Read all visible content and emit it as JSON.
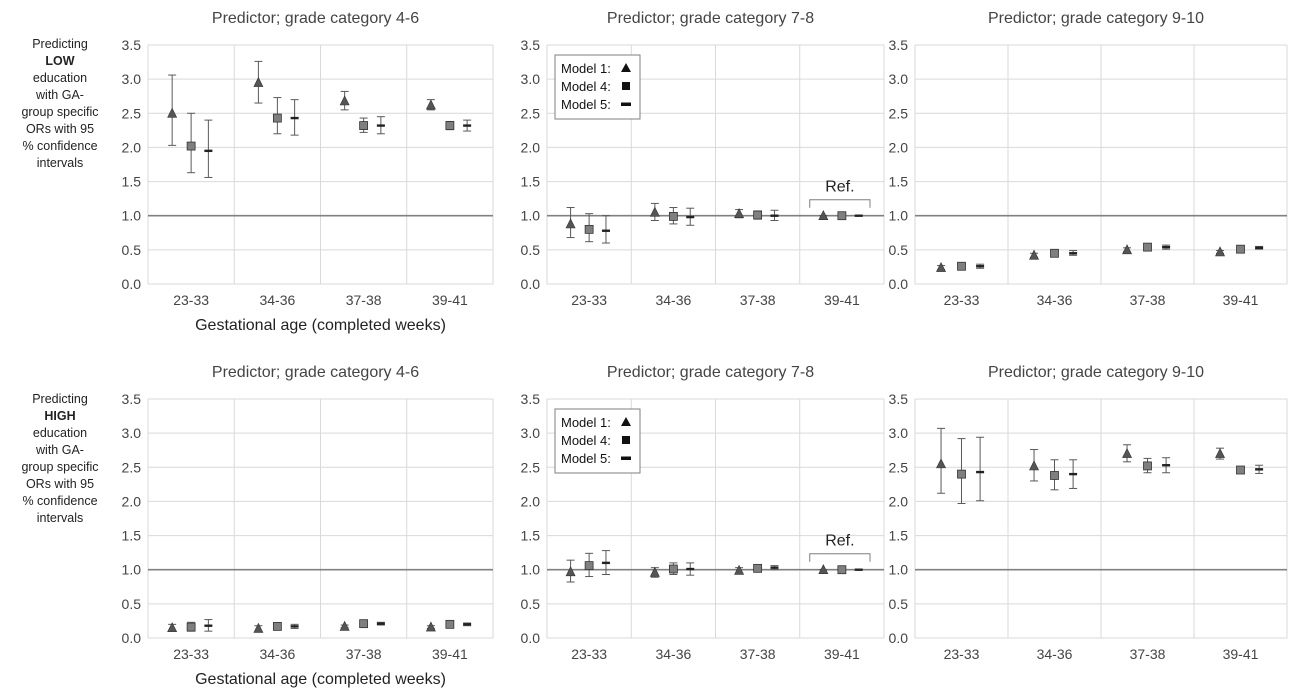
{
  "rows": [
    {
      "caption": [
        "Predicting",
        "LOW",
        "education",
        "with GA-",
        "group specific",
        "ORs with 95",
        "% confidence",
        "intervals"
      ],
      "xlabel": "Gestational age (completed weeks)"
    },
    {
      "caption": [
        "Predicting",
        "HIGH",
        "education",
        "with GA-",
        "group specific",
        "ORs with 95",
        "% confidence",
        "intervals"
      ],
      "xlabel": "Gestational age (completed weeks)"
    }
  ],
  "legend": {
    "entries": [
      {
        "label": "Model 1:",
        "marker": "triangle"
      },
      {
        "label": "Model 4:",
        "marker": "square"
      },
      {
        "label": "Model 5:",
        "marker": "dash"
      }
    ]
  },
  "ref_label": "Ref.",
  "colors": {
    "grid": "#d9d9d9",
    "refline": "#808080",
    "marker": "#555555",
    "marker_fill": "#7f7f7f",
    "errorbar": "#595959",
    "text": "#444444"
  },
  "chart_data": [
    {
      "type": "scatter",
      "title": "Predictor; grade category 4-6",
      "categories": [
        "23-33",
        "34-36",
        "37-38",
        "39-41"
      ],
      "ylim": [
        0,
        3.5
      ],
      "yticks": [
        "0.0",
        "0.5",
        "1.0",
        "1.5",
        "2.0",
        "2.5",
        "3.0",
        "3.5"
      ],
      "reference_line": 1.0,
      "xlabel": "Gestational age (completed weeks)",
      "series": [
        {
          "name": "Model 1",
          "values": [
            2.5,
            2.95,
            2.68,
            2.62
          ],
          "lower": [
            2.03,
            2.65,
            2.55,
            2.55
          ],
          "upper": [
            3.06,
            3.26,
            2.82,
            2.7
          ]
        },
        {
          "name": "Model 4",
          "values": [
            2.02,
            2.43,
            2.32,
            2.32
          ],
          "lower": [
            1.63,
            2.2,
            2.22,
            2.26
          ],
          "upper": [
            2.5,
            2.73,
            2.43,
            2.38
          ]
        },
        {
          "name": "Model 5",
          "values": [
            1.95,
            2.43,
            2.32,
            2.32
          ],
          "lower": [
            1.56,
            2.18,
            2.2,
            2.24
          ],
          "upper": [
            2.4,
            2.7,
            2.45,
            2.4
          ]
        }
      ]
    },
    {
      "type": "scatter",
      "title": "Predictor; grade category 7-8",
      "categories": [
        "23-33",
        "34-36",
        "37-38",
        "39-41"
      ],
      "ylim": [
        0,
        3.5
      ],
      "yticks": [
        "0.0",
        "0.5",
        "1.0",
        "1.5",
        "2.0",
        "2.5",
        "3.0",
        "3.5"
      ],
      "reference_line": 1.0,
      "legend": "top-left",
      "annotation": {
        "text": "Ref.",
        "category": "39-41"
      },
      "series": [
        {
          "name": "Model 1",
          "values": [
            0.88,
            1.05,
            1.03,
            1.0
          ],
          "lower": [
            0.68,
            0.93,
            0.97,
            1.0
          ],
          "upper": [
            1.12,
            1.18,
            1.09,
            1.0
          ]
        },
        {
          "name": "Model 4",
          "values": [
            0.8,
            0.99,
            1.01,
            1.0
          ],
          "lower": [
            0.62,
            0.88,
            0.95,
            1.0
          ],
          "upper": [
            1.03,
            1.12,
            1.07,
            1.0
          ]
        },
        {
          "name": "Model 5",
          "values": [
            0.78,
            0.98,
            1.0,
            1.0
          ],
          "lower": [
            0.6,
            0.86,
            0.93,
            1.0
          ],
          "upper": [
            1.0,
            1.11,
            1.08,
            1.0
          ]
        }
      ]
    },
    {
      "type": "scatter",
      "title": "Predictor; grade category 9-10",
      "categories": [
        "23-33",
        "34-36",
        "37-38",
        "39-41"
      ],
      "ylim": [
        0,
        3.5
      ],
      "yticks": [
        "0.0",
        "0.5",
        "1.0",
        "1.5",
        "2.0",
        "2.5",
        "3.0",
        "3.5"
      ],
      "reference_line": 1.0,
      "series": [
        {
          "name": "Model 1",
          "values": [
            0.24,
            0.42,
            0.5,
            0.47
          ],
          "lower": [
            0.21,
            0.39,
            0.47,
            0.45
          ],
          "upper": [
            0.27,
            0.45,
            0.53,
            0.49
          ]
        },
        {
          "name": "Model 4",
          "values": [
            0.26,
            0.45,
            0.54,
            0.51
          ],
          "lower": [
            0.23,
            0.42,
            0.51,
            0.49
          ],
          "upper": [
            0.29,
            0.48,
            0.57,
            0.53
          ]
        },
        {
          "name": "Model 5",
          "values": [
            0.26,
            0.45,
            0.54,
            0.53
          ],
          "lower": [
            0.23,
            0.42,
            0.51,
            0.51
          ],
          "upper": [
            0.29,
            0.49,
            0.57,
            0.55
          ]
        }
      ]
    },
    {
      "type": "scatter",
      "title": "Predictor; grade category 4-6",
      "categories": [
        "23-33",
        "34-36",
        "37-38",
        "39-41"
      ],
      "ylim": [
        0,
        3.5
      ],
      "yticks": [
        "0.0",
        "0.5",
        "1.0",
        "1.5",
        "2.0",
        "2.5",
        "3.0",
        "3.5"
      ],
      "reference_line": 1.0,
      "xlabel": "Gestational age (completed weeks)",
      "series": [
        {
          "name": "Model 1",
          "values": [
            0.15,
            0.14,
            0.17,
            0.16
          ],
          "lower": [
            0.1,
            0.1,
            0.15,
            0.14
          ],
          "upper": [
            0.2,
            0.18,
            0.19,
            0.18
          ]
        },
        {
          "name": "Model 4",
          "values": [
            0.16,
            0.17,
            0.21,
            0.2
          ],
          "lower": [
            0.1,
            0.14,
            0.19,
            0.18
          ],
          "upper": [
            0.23,
            0.2,
            0.23,
            0.22
          ]
        },
        {
          "name": "Model 5",
          "values": [
            0.18,
            0.17,
            0.21,
            0.2
          ],
          "lower": [
            0.1,
            0.14,
            0.19,
            0.18
          ],
          "upper": [
            0.27,
            0.2,
            0.23,
            0.22
          ]
        }
      ]
    },
    {
      "type": "scatter",
      "title": "Predictor; grade category 7-8",
      "categories": [
        "23-33",
        "34-36",
        "37-38",
        "39-41"
      ],
      "ylim": [
        0,
        3.5
      ],
      "yticks": [
        "0.0",
        "0.5",
        "1.0",
        "1.5",
        "2.0",
        "2.5",
        "3.0",
        "3.5"
      ],
      "reference_line": 1.0,
      "legend": "top-left",
      "annotation": {
        "text": "Ref.",
        "category": "39-41"
      },
      "series": [
        {
          "name": "Model 1",
          "values": [
            0.97,
            0.96,
            0.99,
            1.0
          ],
          "lower": [
            0.82,
            0.89,
            0.95,
            1.0
          ],
          "upper": [
            1.14,
            1.03,
            1.03,
            1.0
          ]
        },
        {
          "name": "Model 4",
          "values": [
            1.06,
            1.01,
            1.02,
            1.0
          ],
          "lower": [
            0.9,
            0.93,
            0.99,
            1.0
          ],
          "upper": [
            1.24,
            1.1,
            1.05,
            1.0
          ]
        },
        {
          "name": "Model 5",
          "values": [
            1.1,
            1.01,
            1.03,
            1.0
          ],
          "lower": [
            0.93,
            0.92,
            1.0,
            1.0
          ],
          "upper": [
            1.28,
            1.1,
            1.06,
            1.0
          ]
        }
      ]
    },
    {
      "type": "scatter",
      "title": "Predictor; grade category 9-10",
      "categories": [
        "23-33",
        "34-36",
        "37-38",
        "39-41"
      ],
      "ylim": [
        0,
        3.5
      ],
      "yticks": [
        "0.0",
        "0.5",
        "1.0",
        "1.5",
        "2.0",
        "2.5",
        "3.0",
        "3.5"
      ],
      "reference_line": 1.0,
      "series": [
        {
          "name": "Model 1",
          "values": [
            2.55,
            2.52,
            2.7,
            2.7
          ],
          "lower": [
            2.12,
            2.3,
            2.58,
            2.62
          ],
          "upper": [
            3.07,
            2.76,
            2.83,
            2.78
          ]
        },
        {
          "name": "Model 4",
          "values": [
            2.4,
            2.38,
            2.52,
            2.46
          ],
          "lower": [
            1.97,
            2.17,
            2.42,
            2.42
          ],
          "upper": [
            2.92,
            2.61,
            2.63,
            2.5
          ]
        },
        {
          "name": "Model 5",
          "values": [
            2.43,
            2.4,
            2.53,
            2.47
          ],
          "lower": [
            2.01,
            2.19,
            2.42,
            2.41
          ],
          "upper": [
            2.94,
            2.61,
            2.64,
            2.53
          ]
        }
      ]
    }
  ]
}
